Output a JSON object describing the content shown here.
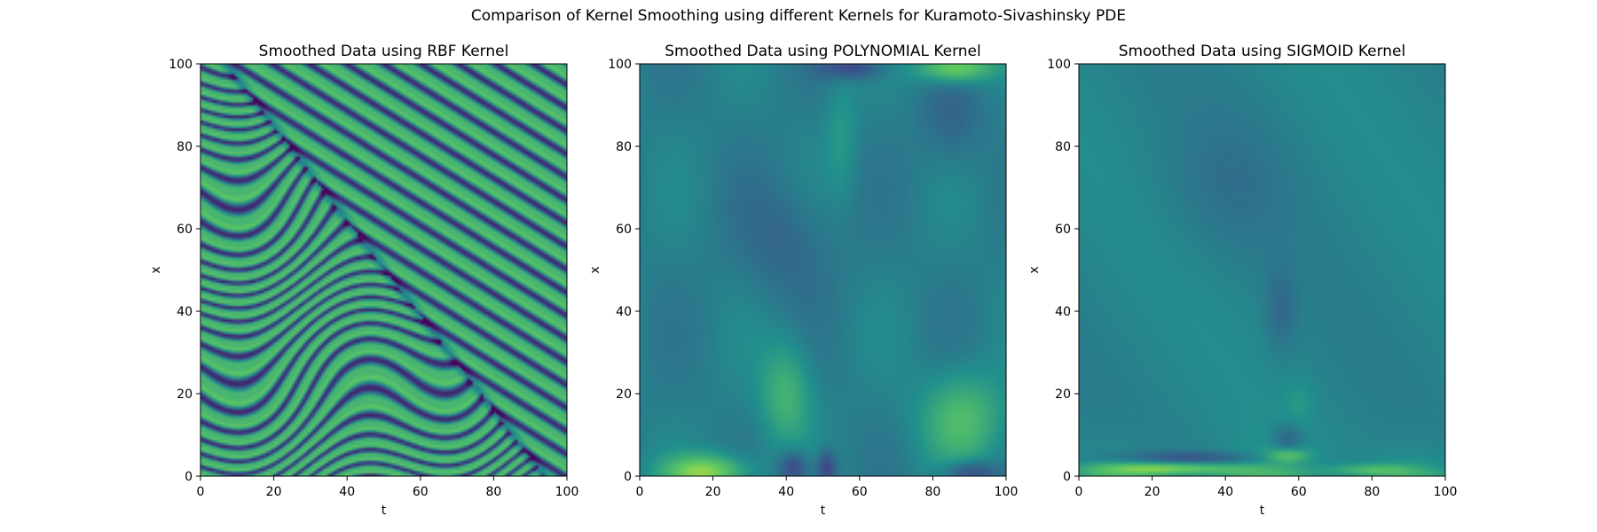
{
  "figure": {
    "suptitle": "Comparison of Kernel Smoothing using different Kernels for Kuramoto-Sivashinsky PDE"
  },
  "chart_data": [
    {
      "type": "heatmap",
      "title": "Smoothed Data using RBF Kernel",
      "xlabel": "t",
      "ylabel": "x",
      "xlim": [
        0,
        100
      ],
      "ylim": [
        0,
        100
      ],
      "xticks": [
        "0",
        "20",
        "40",
        "60",
        "80",
        "100"
      ],
      "yticks": [
        "0",
        "20",
        "40",
        "60",
        "80",
        "100"
      ],
      "colormap": "viridis",
      "pattern": "rbf",
      "colors": [
        "#440154",
        "#3b528b",
        "#21918c",
        "#5ec962",
        "#fde725"
      ]
    },
    {
      "type": "heatmap",
      "title": "Smoothed Data using POLYNOMIAL Kernel",
      "xlabel": "t",
      "ylabel": "x",
      "xlim": [
        0,
        100
      ],
      "ylim": [
        0,
        100
      ],
      "xticks": [
        "0",
        "20",
        "40",
        "60",
        "80",
        "100"
      ],
      "yticks": [
        "0",
        "20",
        "40",
        "60",
        "80",
        "100"
      ],
      "colormap": "viridis",
      "pattern": "polynomial",
      "colors": [
        "#440154",
        "#3b528b",
        "#21918c",
        "#5ec962",
        "#fde725"
      ]
    },
    {
      "type": "heatmap",
      "title": "Smoothed Data using SIGMOID Kernel",
      "xlabel": "t",
      "ylabel": "x",
      "xlim": [
        0,
        100
      ],
      "ylim": [
        0,
        100
      ],
      "xticks": [
        "0",
        "20",
        "40",
        "60",
        "80",
        "100"
      ],
      "yticks": [
        "0",
        "20",
        "40",
        "60",
        "80",
        "100"
      ],
      "colormap": "viridis",
      "pattern": "sigmoid",
      "colors": [
        "#440154",
        "#3b528b",
        "#21918c",
        "#5ec962",
        "#fde725"
      ]
    }
  ]
}
